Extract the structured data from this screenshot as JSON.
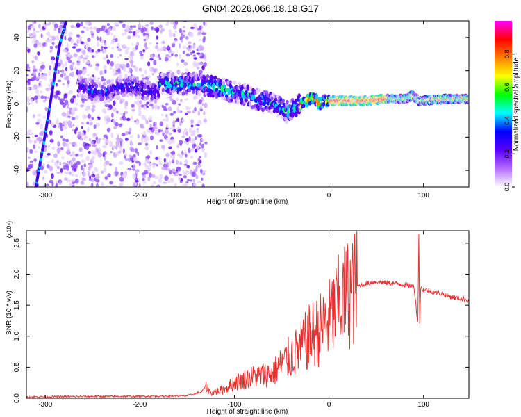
{
  "title": "GN04.2026.066.18.18.G17",
  "chart_data": [
    {
      "type": "heatmap",
      "xlabel": "Height of straight line (km)",
      "ylabel": "Frequency (Hz)",
      "xlim": [
        -320,
        148
      ],
      "ylim": [
        -50,
        50
      ],
      "xticks": [
        -300,
        -200,
        -100,
        0,
        100
      ],
      "yticks": [
        -40,
        -20,
        0,
        20,
        40
      ],
      "colorbar": {
        "label": "Normalized spectral amplitude",
        "range": [
          0,
          1
        ],
        "ticks": [
          "0.0",
          "0.2",
          "0.4",
          "0.6",
          "0.8"
        ],
        "tick_values": [
          0,
          0.2,
          0.4,
          0.6,
          0.8
        ],
        "colors": [
          "#ffffff",
          "#b36bff",
          "#5a00ff",
          "#0000ff",
          "#00ffff",
          "#00ff00",
          "#ffff00",
          "#ff7f00",
          "#ff0000",
          "#ff00ff"
        ]
      },
      "ridge": {
        "x": [
          -180,
          -160,
          -140,
          -120,
          -100,
          -90,
          -80,
          -70,
          -60,
          -50,
          -45,
          -40,
          -30,
          -20,
          -15,
          -10,
          -5,
          0,
          20,
          40,
          60,
          80,
          88,
          95,
          100,
          120,
          148
        ],
        "y": [
          12,
          12,
          12,
          10,
          7,
          6,
          3,
          2,
          0,
          -2,
          -5,
          -4,
          0,
          3,
          3,
          0,
          2,
          2,
          2,
          2,
          3,
          3,
          5,
          2,
          2,
          3,
          3
        ]
      },
      "diagonal_track": {
        "x": [
          -310,
          -300,
          -292,
          -285,
          -278
        ],
        "y": [
          -50,
          -18,
          10,
          35,
          50
        ]
      }
    },
    {
      "type": "line",
      "xlabel": "Height of straight line (km)",
      "ylabel": "SNR (10 * v/v)",
      "y_multiplier_label": "(x10⁴)",
      "xlim": [
        -320,
        148
      ],
      "ylim": [
        0,
        2.7
      ],
      "xticks": [
        -300,
        -200,
        -100,
        0,
        100
      ],
      "yticks": [
        "0.0",
        "0.5",
        "1.0",
        "1.5",
        "2.0",
        "2.5"
      ],
      "ytick_values": [
        0,
        0.5,
        1.0,
        1.5,
        2.0,
        2.5
      ],
      "series": [
        {
          "color": "#e8302f",
          "x": [
            -320,
            -250,
            -200,
            -150,
            -135,
            -130,
            -125,
            -110,
            -100,
            -80,
            -60,
            -50,
            -30,
            -20,
            -10,
            0,
            10,
            20,
            30,
            40,
            50,
            60,
            70,
            80,
            90,
            94,
            95,
            96,
            97,
            100,
            110,
            120,
            130,
            148
          ],
          "y": [
            0.02,
            0.03,
            0.03,
            0.04,
            0.1,
            0.2,
            0.08,
            0.15,
            0.25,
            0.35,
            0.4,
            0.55,
            0.8,
            1.0,
            1.1,
            1.25,
            1.5,
            1.7,
            1.8,
            1.85,
            1.88,
            1.86,
            1.85,
            1.83,
            1.8,
            1.2,
            2.65,
            1.2,
            1.78,
            1.75,
            1.72,
            1.68,
            1.63,
            1.58
          ]
        }
      ]
    }
  ]
}
